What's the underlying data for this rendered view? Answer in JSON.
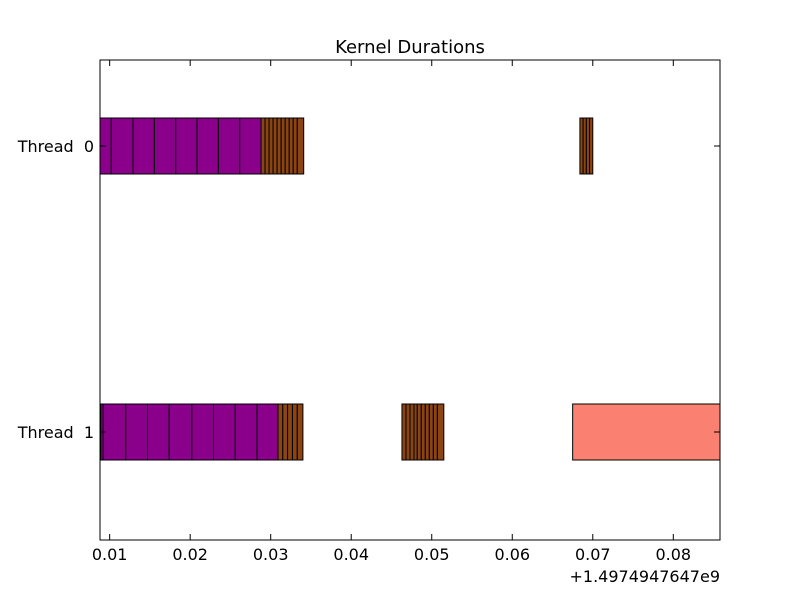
{
  "chart_data": {
    "type": "bar",
    "orientation": "horizontal",
    "title": "Kernel Durations",
    "xlabel": "",
    "ylabel": "",
    "x_offset_label": "+1.4974947647e9",
    "xlim": [
      0.0088,
      0.0858
    ],
    "xticks": [
      {
        "value": 0.01,
        "label": "0.01"
      },
      {
        "value": 0.02,
        "label": "0.02"
      },
      {
        "value": 0.03,
        "label": "0.03"
      },
      {
        "value": 0.04,
        "label": "0.04"
      },
      {
        "value": 0.05,
        "label": "0.05"
      },
      {
        "value": 0.06,
        "label": "0.06"
      },
      {
        "value": 0.07,
        "label": "0.07"
      },
      {
        "value": 0.08,
        "label": "0.08"
      }
    ],
    "categories": [
      "Thread  0",
      "Thread  1"
    ],
    "colors": {
      "purple": "#8B008B",
      "brown": "#8B4513",
      "salmon": "#FA8072",
      "edge": "#000000",
      "frame": "#000000",
      "background": "#ffffff"
    },
    "grid": false,
    "legend": "none",
    "threads": [
      {
        "label": "Thread  0",
        "segments": [
          {
            "start": 0.0088,
            "end": 0.0102,
            "color": "purple"
          },
          {
            "start": 0.0102,
            "end": 0.0129,
            "color": "purple"
          },
          {
            "start": 0.0129,
            "end": 0.01555,
            "color": "purple"
          },
          {
            "start": 0.01555,
            "end": 0.0182,
            "color": "purple"
          },
          {
            "start": 0.0182,
            "end": 0.02085,
            "color": "purple"
          },
          {
            "start": 0.02085,
            "end": 0.0235,
            "color": "purple"
          },
          {
            "start": 0.0235,
            "end": 0.02615,
            "color": "purple"
          },
          {
            "start": 0.02615,
            "end": 0.0288,
            "color": "purple"
          },
          {
            "start": 0.0288,
            "end": 0.0293,
            "color": "brown"
          },
          {
            "start": 0.0293,
            "end": 0.0298,
            "color": "brown"
          },
          {
            "start": 0.0298,
            "end": 0.0303,
            "color": "brown"
          },
          {
            "start": 0.0303,
            "end": 0.0308,
            "color": "brown"
          },
          {
            "start": 0.0308,
            "end": 0.0313,
            "color": "brown"
          },
          {
            "start": 0.0313,
            "end": 0.0318,
            "color": "brown"
          },
          {
            "start": 0.0318,
            "end": 0.0323,
            "color": "brown"
          },
          {
            "start": 0.0323,
            "end": 0.0328,
            "color": "brown"
          },
          {
            "start": 0.0328,
            "end": 0.0333,
            "color": "brown"
          },
          {
            "start": 0.0333,
            "end": 0.0341,
            "color": "brown"
          },
          {
            "start": 0.0684,
            "end": 0.0688,
            "color": "brown"
          },
          {
            "start": 0.0688,
            "end": 0.0692,
            "color": "brown"
          },
          {
            "start": 0.0692,
            "end": 0.0696,
            "color": "brown"
          },
          {
            "start": 0.0696,
            "end": 0.07,
            "color": "brown"
          }
        ]
      },
      {
        "label": "Thread  1",
        "segments": [
          {
            "start": 0.0089,
            "end": 0.0092,
            "color": "purple"
          },
          {
            "start": 0.0092,
            "end": 0.012,
            "color": "purple"
          },
          {
            "start": 0.012,
            "end": 0.0147,
            "color": "purple"
          },
          {
            "start": 0.0147,
            "end": 0.0174,
            "color": "purple"
          },
          {
            "start": 0.0174,
            "end": 0.0202,
            "color": "purple"
          },
          {
            "start": 0.0202,
            "end": 0.0229,
            "color": "purple"
          },
          {
            "start": 0.0229,
            "end": 0.0256,
            "color": "purple"
          },
          {
            "start": 0.0256,
            "end": 0.0283,
            "color": "purple"
          },
          {
            "start": 0.0283,
            "end": 0.0309,
            "color": "purple"
          },
          {
            "start": 0.0309,
            "end": 0.0315,
            "color": "brown"
          },
          {
            "start": 0.0315,
            "end": 0.0321,
            "color": "brown"
          },
          {
            "start": 0.0321,
            "end": 0.0327,
            "color": "brown"
          },
          {
            "start": 0.0327,
            "end": 0.0333,
            "color": "brown"
          },
          {
            "start": 0.0333,
            "end": 0.034,
            "color": "brown"
          },
          {
            "start": 0.0463,
            "end": 0.0468,
            "color": "brown"
          },
          {
            "start": 0.0468,
            "end": 0.0473,
            "color": "brown"
          },
          {
            "start": 0.0473,
            "end": 0.0478,
            "color": "brown"
          },
          {
            "start": 0.0478,
            "end": 0.0482,
            "color": "brown"
          },
          {
            "start": 0.0482,
            "end": 0.0487,
            "color": "brown"
          },
          {
            "start": 0.0487,
            "end": 0.0492,
            "color": "brown"
          },
          {
            "start": 0.0492,
            "end": 0.0497,
            "color": "brown"
          },
          {
            "start": 0.0497,
            "end": 0.0502,
            "color": "brown"
          },
          {
            "start": 0.0502,
            "end": 0.0507,
            "color": "brown"
          },
          {
            "start": 0.0507,
            "end": 0.0515,
            "color": "brown"
          },
          {
            "start": 0.0675,
            "end": 0.0858,
            "color": "salmon"
          }
        ]
      }
    ]
  }
}
